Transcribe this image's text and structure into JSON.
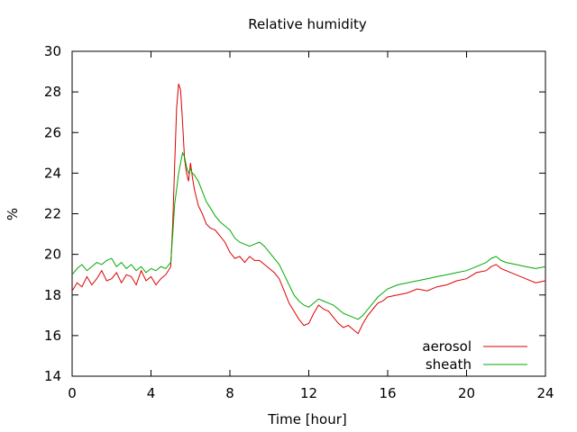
{
  "chart_data": {
    "type": "line",
    "title": "Relative humidity",
    "xlabel": "Time [hour]",
    "ylabel": "%",
    "xlim": [
      0,
      24
    ],
    "ylim": [
      14,
      30
    ],
    "xticks": [
      0,
      4,
      8,
      12,
      16,
      20,
      24
    ],
    "yticks": [
      14,
      16,
      18,
      20,
      22,
      24,
      26,
      28,
      30
    ],
    "grid": false,
    "legend_position": "bottom-right",
    "series": [
      {
        "name": "aerosol",
        "color": "#dd0000",
        "x": [
          0,
          0.25,
          0.5,
          0.75,
          1,
          1.25,
          1.5,
          1.75,
          2,
          2.25,
          2.5,
          2.75,
          3,
          3.25,
          3.5,
          3.75,
          4,
          4.25,
          4.5,
          4.75,
          5,
          5.1,
          5.2,
          5.3,
          5.4,
          5.5,
          5.6,
          5.7,
          5.8,
          5.9,
          6,
          6.1,
          6.2,
          6.4,
          6.6,
          6.8,
          7,
          7.25,
          7.5,
          7.75,
          8,
          8.25,
          8.5,
          8.75,
          9,
          9.25,
          9.5,
          9.75,
          10,
          10.25,
          10.5,
          10.75,
          11,
          11.25,
          11.5,
          11.75,
          12,
          12.25,
          12.5,
          12.75,
          13,
          13.25,
          13.5,
          13.75,
          14,
          14.25,
          14.5,
          14.75,
          15,
          15.25,
          15.5,
          15.75,
          16,
          16.5,
          17,
          17.5,
          18,
          18.5,
          19,
          19.5,
          20,
          20.5,
          21,
          21.25,
          21.5,
          21.75,
          22,
          22.5,
          23,
          23.5,
          24
        ],
        "y": [
          18.2,
          18.6,
          18.4,
          18.9,
          18.5,
          18.8,
          19.2,
          18.7,
          18.8,
          19.1,
          18.6,
          19.0,
          18.9,
          18.5,
          19.2,
          18.7,
          18.9,
          18.5,
          18.8,
          19.0,
          19.4,
          21.5,
          24.5,
          27.2,
          28.4,
          28.1,
          26.5,
          24.7,
          24.0,
          23.6,
          24.5,
          23.8,
          23.2,
          22.4,
          22.0,
          21.5,
          21.3,
          21.2,
          20.9,
          20.6,
          20.1,
          19.8,
          19.9,
          19.6,
          19.9,
          19.7,
          19.7,
          19.5,
          19.3,
          19.1,
          18.8,
          18.2,
          17.6,
          17.2,
          16.8,
          16.5,
          16.6,
          17.1,
          17.5,
          17.3,
          17.2,
          16.9,
          16.6,
          16.4,
          16.5,
          16.3,
          16.1,
          16.6,
          17.0,
          17.3,
          17.6,
          17.7,
          17.9,
          18.0,
          18.1,
          18.3,
          18.2,
          18.4,
          18.5,
          18.7,
          18.8,
          19.1,
          19.2,
          19.4,
          19.5,
          19.3,
          19.2,
          19.0,
          18.8,
          18.6,
          18.7
        ]
      },
      {
        "name": "sheath",
        "color": "#00aa00",
        "x": [
          0,
          0.25,
          0.5,
          0.75,
          1,
          1.25,
          1.5,
          1.75,
          2,
          2.25,
          2.5,
          2.75,
          3,
          3.25,
          3.5,
          3.75,
          4,
          4.25,
          4.5,
          4.75,
          5,
          5.1,
          5.2,
          5.3,
          5.4,
          5.5,
          5.6,
          5.7,
          5.8,
          5.9,
          6,
          6.1,
          6.2,
          6.4,
          6.6,
          6.8,
          7,
          7.25,
          7.5,
          7.75,
          8,
          8.25,
          8.5,
          8.75,
          9,
          9.25,
          9.5,
          9.75,
          10,
          10.25,
          10.5,
          10.75,
          11,
          11.25,
          11.5,
          11.75,
          12,
          12.25,
          12.5,
          12.75,
          13,
          13.25,
          13.5,
          13.75,
          14,
          14.25,
          14.5,
          14.75,
          15,
          15.25,
          15.5,
          15.75,
          16,
          16.5,
          17,
          17.5,
          18,
          18.5,
          19,
          19.5,
          20,
          20.5,
          21,
          21.25,
          21.5,
          21.75,
          22,
          22.5,
          23,
          23.5,
          24
        ],
        "y": [
          19.0,
          19.3,
          19.5,
          19.2,
          19.4,
          19.6,
          19.5,
          19.7,
          19.8,
          19.4,
          19.6,
          19.3,
          19.5,
          19.2,
          19.4,
          19.1,
          19.3,
          19.2,
          19.4,
          19.3,
          19.6,
          21.0,
          22.5,
          23.2,
          24.0,
          24.5,
          25.0,
          24.8,
          24.3,
          24.0,
          24.2,
          24.0,
          23.9,
          23.6,
          23.1,
          22.6,
          22.3,
          21.9,
          21.6,
          21.4,
          21.2,
          20.8,
          20.6,
          20.5,
          20.4,
          20.5,
          20.6,
          20.4,
          20.1,
          19.8,
          19.5,
          19.0,
          18.5,
          18.0,
          17.7,
          17.5,
          17.4,
          17.6,
          17.8,
          17.7,
          17.6,
          17.5,
          17.3,
          17.1,
          17.0,
          16.9,
          16.8,
          17.0,
          17.3,
          17.6,
          17.9,
          18.1,
          18.3,
          18.5,
          18.6,
          18.7,
          18.8,
          18.9,
          19.0,
          19.1,
          19.2,
          19.4,
          19.6,
          19.8,
          19.9,
          19.7,
          19.6,
          19.5,
          19.4,
          19.3,
          19.4
        ]
      }
    ]
  }
}
